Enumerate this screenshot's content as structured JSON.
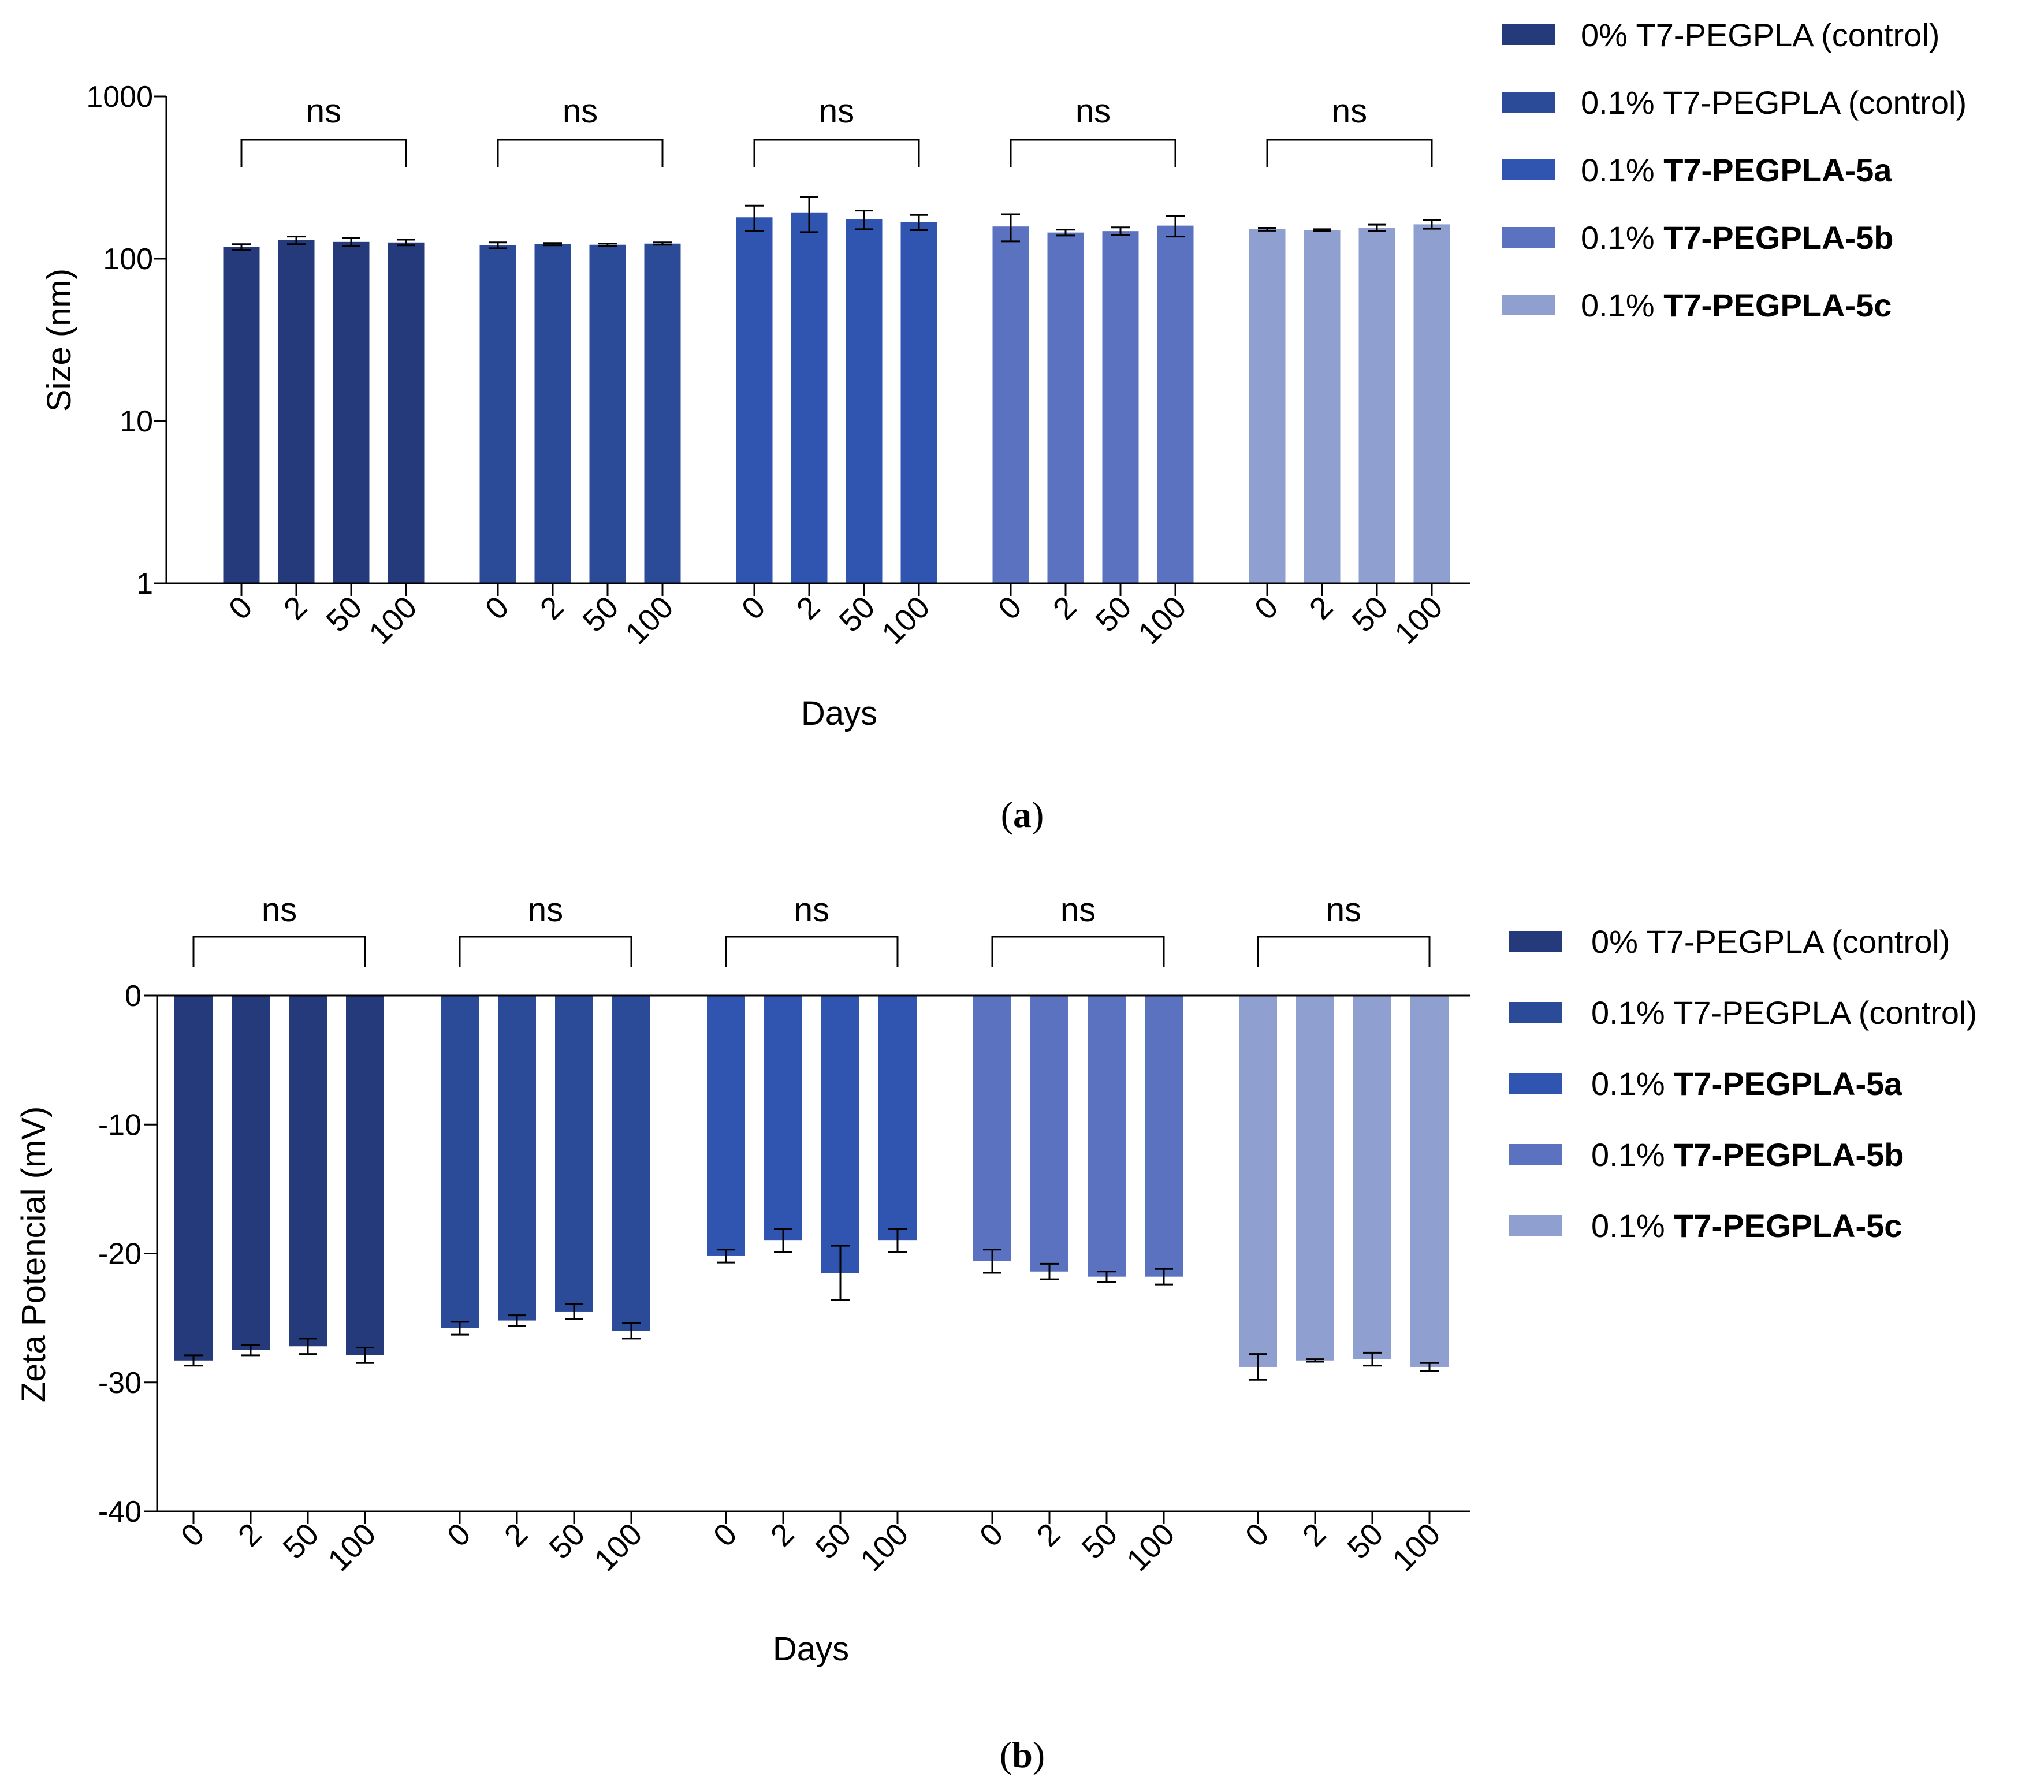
{
  "chart_data": [
    {
      "type": "bar",
      "panel_label": "(a)",
      "panel_letter": "a",
      "ylabel": "Size (nm)",
      "xlabel": "Days",
      "yscale": "log",
      "ylim": [
        1,
        1000
      ],
      "yticks": [
        "1",
        "10",
        "100",
        "1000"
      ],
      "categories": [
        "0",
        "2",
        "50",
        "100"
      ],
      "significance": [
        "ns",
        "ns",
        "ns",
        "ns",
        "ns"
      ],
      "legend_position": "top-right",
      "series": [
        {
          "name": "0% T7-PEGPLA (control)",
          "name_plain": "0% T7-PEGPLA (control)",
          "name_bold": "",
          "color": "#243a7a",
          "values": [
            118,
            130,
            127,
            126
          ],
          "errors": [
            5,
            7,
            7,
            5
          ]
        },
        {
          "name": "0.1% T7-PEGPLA (control)",
          "name_plain": "0.1% T7-PEGPLA (control)",
          "name_bold": "",
          "color": "#2b4a98",
          "values": [
            121,
            123,
            122,
            124
          ],
          "errors": [
            5,
            2,
            2,
            2
          ]
        },
        {
          "name": "0.1% T7-PEGPLA-5a",
          "name_plain": "0.1% ",
          "name_bold": "T7-PEGPLA-5a",
          "color": "#3055b0",
          "values": [
            180,
            193,
            175,
            168
          ],
          "errors": [
            32,
            47,
            23,
            18
          ]
        },
        {
          "name": "0.1% T7-PEGPLA-5b",
          "name_plain": "0.1% ",
          "name_bold": "T7-PEGPLA-5b",
          "color": "#5b72c0",
          "values": [
            158,
            145,
            148,
            160
          ],
          "errors": [
            30,
            6,
            8,
            23
          ]
        },
        {
          "name": "0.1% T7-PEGPLA-5c",
          "name_plain": "0.1% ",
          "name_bold": "T7-PEGPLA-5c",
          "color": "#8f9fd0",
          "values": [
            152,
            150,
            155,
            163
          ],
          "errors": [
            3,
            2,
            7,
            10
          ]
        }
      ]
    },
    {
      "type": "bar",
      "panel_label": "(b)",
      "panel_letter": "b",
      "ylabel": "Zeta Potencial (mV)",
      "xlabel": "Days",
      "ylim": [
        -40,
        0
      ],
      "yticks": [
        "0",
        "-10",
        "-20",
        "-30",
        "-40"
      ],
      "categories": [
        "0",
        "2",
        "50",
        "100"
      ],
      "significance": [
        "ns",
        "ns",
        "ns",
        "ns",
        "ns"
      ],
      "legend_position": "top-right",
      "series": [
        {
          "name": "0% T7-PEGPLA (control)",
          "name_plain": "0% T7-PEGPLA (control)",
          "name_bold": "",
          "color": "#243a7a",
          "values": [
            -28.3,
            -27.5,
            -27.2,
            -27.9
          ],
          "errors": [
            0.4,
            0.4,
            0.6,
            0.6
          ]
        },
        {
          "name": "0.1% T7-PEGPLA (control)",
          "name_plain": "0.1% T7-PEGPLA (control)",
          "name_bold": "",
          "color": "#2b4a98",
          "values": [
            -25.8,
            -25.2,
            -24.5,
            -26.0
          ],
          "errors": [
            0.5,
            0.4,
            0.6,
            0.6
          ]
        },
        {
          "name": "0.1% T7-PEGPLA-5a",
          "name_plain": "0.1% ",
          "name_bold": "T7-PEGPLA-5a",
          "color": "#3055b0",
          "values": [
            -20.2,
            -19.0,
            -21.5,
            -19.0
          ],
          "errors": [
            0.5,
            0.9,
            2.1,
            0.9
          ]
        },
        {
          "name": "0.1% T7-PEGPLA-5b",
          "name_plain": "0.1% ",
          "name_bold": "T7-PEGPLA-5b",
          "color": "#5b72c0",
          "values": [
            -20.6,
            -21.4,
            -21.8,
            -21.8
          ],
          "errors": [
            0.9,
            0.6,
            0.4,
            0.6
          ]
        },
        {
          "name": "0.1% T7-PEGPLA-5c",
          "name_plain": "0.1% ",
          "name_bold": "T7-PEGPLA-5c",
          "color": "#8f9fd0",
          "values": [
            -28.8,
            -28.3,
            -28.2,
            -28.8
          ],
          "errors": [
            1.0,
            0.1,
            0.5,
            0.3
          ]
        }
      ]
    }
  ]
}
